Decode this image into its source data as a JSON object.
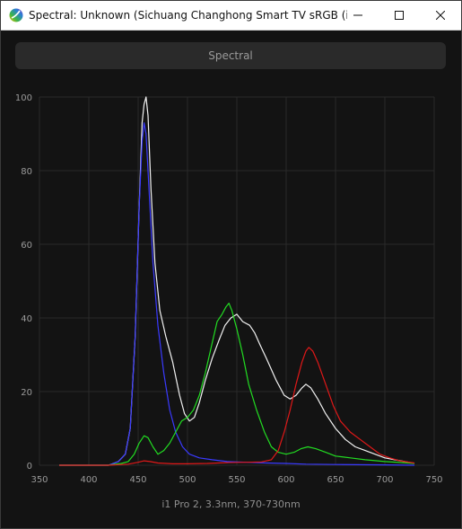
{
  "window": {
    "title": "Spectral: Unknown (Sichuang Changhong Smart TV sRGB (i1 Pr...",
    "icon": "app-logo-icon"
  },
  "tab": {
    "label": "Spectral"
  },
  "footer": {
    "label": "i1 Pro 2, 3.3nm, 370-730nm"
  },
  "colors": {
    "background": "#131313",
    "grid": "#2a2a2a",
    "tick_text": "#9a9a9a",
    "white": "#f2f2f2",
    "blue": "#3a3aff",
    "green": "#22dd22",
    "red": "#e01818"
  },
  "chart_data": {
    "type": "line",
    "xlim": [
      350,
      750
    ],
    "ylim": [
      0,
      100
    ],
    "xticks": [
      350,
      400,
      450,
      500,
      550,
      600,
      650,
      700,
      750
    ],
    "yticks": [
      0,
      20,
      40,
      60,
      80,
      100
    ],
    "grid": true,
    "series": [
      {
        "color": "white",
        "points": [
          [
            370,
            0
          ],
          [
            400,
            0
          ],
          [
            420,
            0
          ],
          [
            430,
            1
          ],
          [
            437,
            3
          ],
          [
            442,
            10
          ],
          [
            447,
            35
          ],
          [
            451,
            70
          ],
          [
            454,
            93
          ],
          [
            456,
            98
          ],
          [
            458,
            100
          ],
          [
            460,
            95
          ],
          [
            463,
            75
          ],
          [
            467,
            55
          ],
          [
            472,
            42
          ],
          [
            478,
            35
          ],
          [
            485,
            28
          ],
          [
            492,
            19
          ],
          [
            497,
            14
          ],
          [
            502,
            12
          ],
          [
            507,
            13
          ],
          [
            512,
            17
          ],
          [
            518,
            23
          ],
          [
            525,
            29
          ],
          [
            532,
            34
          ],
          [
            538,
            38
          ],
          [
            544,
            40
          ],
          [
            550,
            41
          ],
          [
            556,
            39
          ],
          [
            563,
            38
          ],
          [
            568,
            36
          ],
          [
            573,
            33
          ],
          [
            580,
            29
          ],
          [
            590,
            23
          ],
          [
            598,
            19
          ],
          [
            604,
            18
          ],
          [
            610,
            19
          ],
          [
            616,
            21
          ],
          [
            620,
            22
          ],
          [
            625,
            21
          ],
          [
            632,
            18
          ],
          [
            640,
            14
          ],
          [
            650,
            10
          ],
          [
            660,
            7
          ],
          [
            670,
            5
          ],
          [
            680,
            4
          ],
          [
            690,
            3
          ],
          [
            700,
            2
          ],
          [
            710,
            1.5
          ],
          [
            720,
            1
          ],
          [
            730,
            0.5
          ]
        ]
      },
      {
        "color": "blue",
        "points": [
          [
            370,
            0
          ],
          [
            400,
            0
          ],
          [
            420,
            0
          ],
          [
            430,
            1
          ],
          [
            437,
            3
          ],
          [
            442,
            10
          ],
          [
            447,
            35
          ],
          [
            451,
            70
          ],
          [
            454,
            88
          ],
          [
            456,
            93
          ],
          [
            458,
            90
          ],
          [
            461,
            75
          ],
          [
            465,
            55
          ],
          [
            470,
            38
          ],
          [
            476,
            25
          ],
          [
            482,
            15
          ],
          [
            488,
            9
          ],
          [
            495,
            5
          ],
          [
            502,
            3
          ],
          [
            512,
            2
          ],
          [
            525,
            1.5
          ],
          [
            540,
            1
          ],
          [
            560,
            0.8
          ],
          [
            580,
            0.6
          ],
          [
            600,
            0.5
          ],
          [
            620,
            0.3
          ],
          [
            650,
            0.2
          ],
          [
            700,
            0.1
          ],
          [
            730,
            0
          ]
        ]
      },
      {
        "color": "green",
        "points": [
          [
            370,
            0
          ],
          [
            420,
            0
          ],
          [
            433,
            0.5
          ],
          [
            440,
            1
          ],
          [
            446,
            3
          ],
          [
            451,
            6
          ],
          [
            456,
            8
          ],
          [
            460,
            7.5
          ],
          [
            465,
            5
          ],
          [
            470,
            3
          ],
          [
            476,
            4
          ],
          [
            482,
            6
          ],
          [
            488,
            9
          ],
          [
            494,
            12
          ],
          [
            500,
            13
          ],
          [
            506,
            15
          ],
          [
            512,
            19
          ],
          [
            518,
            25
          ],
          [
            524,
            32
          ],
          [
            530,
            39
          ],
          [
            535,
            41
          ],
          [
            539,
            43
          ],
          [
            542,
            44
          ],
          [
            545,
            42
          ],
          [
            550,
            37
          ],
          [
            556,
            30
          ],
          [
            562,
            22
          ],
          [
            570,
            15
          ],
          [
            578,
            9
          ],
          [
            585,
            5
          ],
          [
            592,
            3.5
          ],
          [
            600,
            3
          ],
          [
            608,
            3.5
          ],
          [
            615,
            4.5
          ],
          [
            622,
            5
          ],
          [
            630,
            4.5
          ],
          [
            640,
            3.5
          ],
          [
            650,
            2.5
          ],
          [
            665,
            2
          ],
          [
            680,
            1.5
          ],
          [
            700,
            1
          ],
          [
            730,
            0.5
          ]
        ]
      },
      {
        "color": "red",
        "points": [
          [
            370,
            0
          ],
          [
            420,
            0
          ],
          [
            440,
            0.3
          ],
          [
            450,
            0.8
          ],
          [
            456,
            1.2
          ],
          [
            462,
            1
          ],
          [
            470,
            0.6
          ],
          [
            485,
            0.4
          ],
          [
            500,
            0.4
          ],
          [
            520,
            0.5
          ],
          [
            540,
            0.7
          ],
          [
            560,
            0.8
          ],
          [
            575,
            0.9
          ],
          [
            585,
            1.5
          ],
          [
            592,
            4
          ],
          [
            598,
            9
          ],
          [
            604,
            15
          ],
          [
            610,
            22
          ],
          [
            616,
            28
          ],
          [
            620,
            31
          ],
          [
            623,
            32
          ],
          [
            627,
            31
          ],
          [
            632,
            28
          ],
          [
            640,
            22
          ],
          [
            648,
            16
          ],
          [
            655,
            12
          ],
          [
            665,
            9
          ],
          [
            675,
            7
          ],
          [
            685,
            5
          ],
          [
            695,
            3
          ],
          [
            705,
            2
          ],
          [
            715,
            1.2
          ],
          [
            730,
            0.6
          ]
        ]
      }
    ]
  }
}
